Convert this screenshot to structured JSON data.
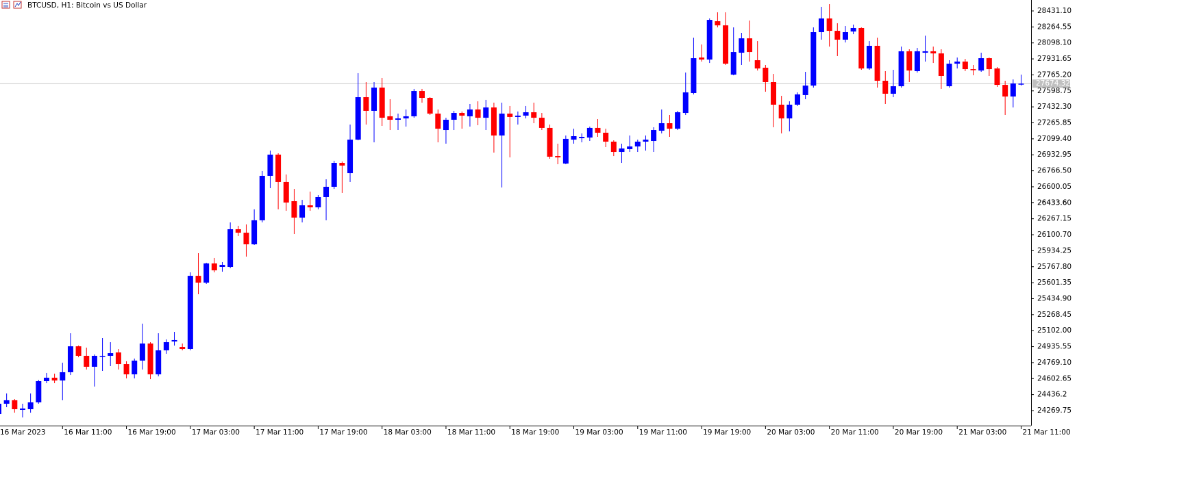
{
  "chart_data": {
    "type": "candlestick",
    "title": "BTCUSD, H1:  Bitcoin vs US Dollar",
    "x": [
      "16 Mar 2023",
      null,
      null,
      null,
      null,
      null,
      null,
      null,
      "16 Mar 11:00",
      null,
      null,
      null,
      null,
      null,
      null,
      null,
      "16 Mar 19:00",
      null,
      null,
      null,
      null,
      null,
      null,
      null,
      "17 Mar 03:00",
      null,
      null,
      null,
      null,
      null,
      null,
      null,
      "17 Mar 11:00",
      null,
      null,
      null,
      null,
      null,
      null,
      null,
      "17 Mar 19:00",
      null,
      null,
      null,
      null,
      null,
      null,
      null,
      "18 Mar 03:00",
      null,
      null,
      null,
      null,
      null,
      null,
      null,
      "18 Mar 11:00",
      null,
      null,
      null,
      null,
      null,
      null,
      null,
      "18 Mar 19:00",
      null,
      null,
      null,
      null,
      null,
      null,
      null,
      "19 Mar 03:00",
      null,
      null,
      null,
      null,
      null,
      null,
      null,
      "19 Mar 11:00",
      null,
      null,
      null,
      null,
      null,
      null,
      null,
      "19 Mar 19:00",
      null,
      null,
      null,
      null,
      null,
      null,
      null,
      "20 Mar 03:00",
      null,
      null,
      null,
      null,
      null,
      null,
      null,
      "20 Mar 11:00",
      null,
      null,
      null,
      null,
      null,
      null,
      null,
      "20 Mar 19:00",
      null,
      null,
      null,
      null,
      null,
      null,
      null,
      "21 Mar 03:00",
      null,
      null,
      null,
      null,
      null,
      null,
      null,
      "21 Mar 11:00"
    ],
    "open": [
      24234,
      24341,
      24377,
      24277,
      24284,
      24355,
      24576,
      24612,
      24583,
      24669,
      24939,
      24840,
      24726,
      24833,
      24840,
      24875,
      24754,
      24647,
      24790,
      24968,
      24647,
      24897,
      24989,
      24932,
      24911,
      25673,
      25602,
      25802,
      25766,
      25766,
      26158,
      26122,
      26001,
      26251,
      26714,
      26935,
      26650,
      26450,
      26279,
      26407,
      26386,
      26493,
      26600,
      26849,
      26742,
      27091,
      27533,
      27391,
      27633,
      27334,
      27298,
      27312,
      27334,
      27597,
      27526,
      27362,
      27191,
      27298,
      27369,
      27334,
      27405,
      27319,
      27426,
      27134,
      27362,
      27327,
      27341,
      27376,
      27319,
      27213,
      26920,
      26842,
      27091,
      27106,
      27113,
      27213,
      27163,
      27070,
      26963,
      26992,
      27020,
      27070,
      27077,
      27184,
      27262,
      27205,
      27369,
      27576,
      27946,
      27925,
      28324,
      28281,
      27768,
      27996,
      28146,
      27918,
      27840,
      27690,
      27455,
      27312,
      27455,
      27555,
      27654,
      28210,
      28353,
      28224,
      28132,
      28217,
      28253,
      27832,
      28068,
      27704,
      27569,
      27647,
      28011,
      27804,
      27996,
      28011,
      27989,
      27647,
      27882,
      27904,
      27825,
      27811,
      27939,
      27832,
      27661,
      27540,
      27669
    ],
    "high": [
      24355,
      24448,
      24391,
      24341,
      24448,
      24590,
      24662,
      24654,
      24768,
      25075,
      24947,
      24925,
      24854,
      25025,
      24982,
      24911,
      24783,
      24811,
      25175,
      24982,
      25075,
      25011,
      25089,
      24968,
      25709,
      25909,
      25809,
      25859,
      25816,
      26229,
      26194,
      26208,
      26365,
      26764,
      26977,
      26949,
      26728,
      26578,
      26464,
      26550,
      26514,
      26678,
      26871,
      26863,
      27248,
      27783,
      27690,
      27690,
      27733,
      27512,
      27362,
      27405,
      27619,
      27619,
      27533,
      27405,
      27319,
      27391,
      27384,
      27462,
      27490,
      27505,
      27476,
      27476,
      27441,
      27384,
      27441,
      27476,
      27369,
      27248,
      27049,
      27134,
      27205,
      27156,
      27227,
      27305,
      27205,
      27084,
      27049,
      27134,
      27091,
      27134,
      27220,
      27405,
      27348,
      27391,
      27790,
      28153,
      28082,
      28353,
      28417,
      28417,
      28260,
      28203,
      28331,
      28117,
      27868,
      27775,
      27547,
      27490,
      27583,
      27797,
      28260,
      28474,
      28502,
      28303,
      28274,
      28289,
      28260,
      28117,
      28153,
      27804,
      27818,
      28060,
      28032,
      28046,
      28174,
      28060,
      28032,
      27918,
      27946,
      27932,
      27868,
      27996,
      27946,
      27847,
      27704,
      27718,
      27768
    ],
    "low": [
      24213,
      24305,
      24248,
      24198,
      24248,
      24341,
      24555,
      24555,
      24377,
      24640,
      24825,
      24697,
      24520,
      24683,
      24733,
      24697,
      24605,
      24605,
      24697,
      24597,
      24626,
      24861,
      24947,
      24897,
      24897,
      25481,
      25588,
      25709,
      25716,
      25752,
      26087,
      25873,
      25994,
      26229,
      26586,
      26365,
      26350,
      26108,
      26229,
      26350,
      26365,
      26251,
      26578,
      26536,
      26650,
      27084,
      27248,
      27063,
      27234,
      27191,
      27191,
      27227,
      27319,
      27476,
      27348,
      27063,
      27049,
      27191,
      27205,
      27227,
      27241,
      27191,
      26956,
      26593,
      26906,
      27248,
      27312,
      27262,
      27191,
      26892,
      26835,
      26835,
      27049,
      27063,
      27077,
      27120,
      27013,
      26920,
      26849,
      26963,
      26963,
      26977,
      26963,
      27156,
      27120,
      27191,
      27348,
      27562,
      27904,
      27889,
      28260,
      27868,
      27761,
      27868,
      27904,
      27811,
      27590,
      27220,
      27156,
      27177,
      27441,
      27512,
      27633,
      28132,
      28060,
      27961,
      28103,
      28189,
      27818,
      27818,
      27633,
      27462,
      27533,
      27633,
      27690,
      27790,
      27904,
      27889,
      27619,
      27633,
      27832,
      27804,
      27761,
      27797,
      27754,
      27640,
      27348,
      27426,
      27654
    ],
    "close": [
      24341,
      24377,
      24284,
      24291,
      24355,
      24576,
      24612,
      24583,
      24669,
      24939,
      24840,
      24726,
      24840,
      24840,
      24868,
      24754,
      24647,
      24790,
      24968,
      24647,
      24897,
      24982,
      25004,
      24911,
      25673,
      25602,
      25802,
      25730,
      25787,
      26158,
      26122,
      26001,
      26251,
      26714,
      26935,
      26650,
      26436,
      26279,
      26407,
      26386,
      26493,
      26600,
      26849,
      26821,
      27091,
      27533,
      27391,
      27633,
      27319,
      27298,
      27312,
      27334,
      27597,
      27526,
      27362,
      27205,
      27298,
      27369,
      27341,
      27405,
      27319,
      27426,
      27134,
      27362,
      27327,
      27341,
      27376,
      27319,
      27213,
      26913,
      26906,
      27099,
      27127,
      27120,
      27213,
      27163,
      27070,
      26963,
      26999,
      27020,
      27070,
      27091,
      27191,
      27262,
      27205,
      27376,
      27583,
      27939,
      27925,
      28338,
      28281,
      27882,
      28003,
      28146,
      28003,
      27832,
      27690,
      27455,
      27312,
      27455,
      27562,
      27654,
      28210,
      28353,
      28224,
      28132,
      28210,
      28253,
      27832,
      28068,
      27704,
      27569,
      27647,
      28011,
      27811,
      28011,
      28011,
      27989,
      27754,
      27882,
      27904,
      27825,
      27818,
      27939,
      27825,
      27661,
      27540,
      27676,
      27674.32
    ],
    "up_color": "#0000ff",
    "down_color": "#ff0000",
    "current_price": 27674.32,
    "ylim": [
      24113,
      28545
    ],
    "yticks": [
      {
        "value": 28431.1,
        "label": "28431.10"
      },
      28264.55,
      {
        "value": 28098.1,
        "label": "28098.10"
      },
      27931.65,
      {
        "value": 27765.2,
        "label": "27765.20"
      },
      27598.75,
      {
        "value": 27432.3,
        "label": "27432.30"
      },
      27265.85,
      {
        "value": 27099.4,
        "label": "27099.40"
      },
      26932.95,
      {
        "value": 26766.5,
        "label": "26766.50"
      },
      26600.05,
      26433.6,
      {
        "value": 26433.6,
        "label": "26433.60"
      },
      26267.15,
      {
        "value": 26100.7,
        "label": "26100.70"
      },
      25934.25,
      {
        "value": 25767.8,
        "label": "25767.80"
      },
      25601.35,
      {
        "value": 25434.9,
        "label": "25434.90"
      },
      25268.45,
      {
        "value": 25102.0,
        "label": "25102.00"
      },
      24935.55,
      {
        "value": 24769.1,
        "label": "24769.10"
      },
      24602.65,
      24436.2,
      24269.75
    ]
  }
}
